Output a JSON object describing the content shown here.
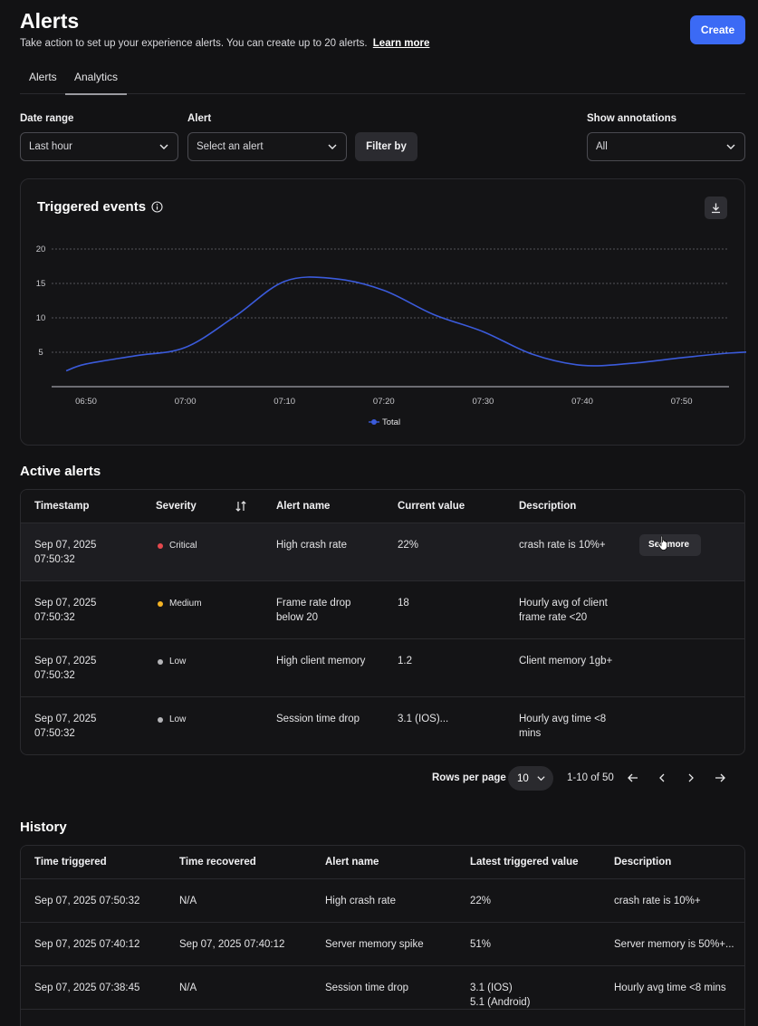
{
  "header": {
    "title": "Alerts",
    "subtitle": "Take action to set up your experience alerts. You can create up to 20 alerts.",
    "learn_more": "Learn more",
    "create_label": "Create"
  },
  "tabs": [
    {
      "label": "Alerts",
      "active": false
    },
    {
      "label": "Analytics",
      "active": true
    }
  ],
  "filters": {
    "date_range_label": "Date range",
    "date_range_value": "Last hour",
    "alert_label": "Alert",
    "alert_placeholder": "Select an alert",
    "filter_button": "Filter by",
    "annotations_label": "Show annotations",
    "annotations_value": "All"
  },
  "chart_data": {
    "type": "line",
    "title": "Triggered events",
    "x": [
      "06:50",
      "07:00",
      "07:10",
      "07:20",
      "07:30",
      "07:40",
      "07:50"
    ],
    "series": [
      {
        "name": "Total",
        "color": "#3b5bdb",
        "points": [
          [
            -2,
            2.3
          ],
          [
            0,
            3.3
          ],
          [
            5,
            4.5
          ],
          [
            10,
            5.7
          ],
          [
            15,
            10.2
          ],
          [
            20,
            15.3
          ],
          [
            25,
            15.7
          ],
          [
            30,
            14.0
          ],
          [
            35,
            10.5
          ],
          [
            40,
            8.0
          ],
          [
            45,
            4.7
          ],
          [
            50,
            3.1
          ],
          [
            55,
            3.4
          ],
          [
            60,
            4.2
          ],
          [
            65,
            4.9
          ],
          [
            70,
            5.2
          ],
          [
            75,
            5.3
          ],
          [
            78,
            5.3
          ]
        ]
      }
    ],
    "ylim": [
      0,
      20
    ],
    "yticks": [
      5,
      10,
      15,
      20
    ],
    "grid": true,
    "legend": "bottom-center"
  },
  "active_alerts": {
    "title": "Active alerts",
    "columns": [
      "Timestamp",
      "Severity",
      "Alert name",
      "Current value",
      "Description"
    ],
    "rows": [
      {
        "ts1": "Sep 07, 2025",
        "ts2": "07:50:32",
        "severity": "Critical",
        "color": "#e5484d",
        "name1": "High crash rate",
        "name2": "",
        "value": "22%",
        "desc1": "crash rate is 10%+",
        "desc2": ""
      },
      {
        "ts1": "Sep 07, 2025",
        "ts2": "07:50:32",
        "severity": "Medium",
        "color": "#f5b324",
        "name1": "Frame rate drop",
        "name2": "below 20",
        "value": "18",
        "desc1": "Hourly avg of client",
        "desc2": "frame rate <20"
      },
      {
        "ts1": "Sep 07, 2025",
        "ts2": "07:50:32",
        "severity": "Low",
        "color": "#b5b5b8",
        "name1": "High client memory",
        "name2": "",
        "value": "1.2",
        "desc1": "Client memory 1gb+",
        "desc2": ""
      },
      {
        "ts1": "Sep 07, 2025",
        "ts2": "07:50:32",
        "severity": "Low",
        "color": "#b5b5b8",
        "name1": "Session time drop",
        "name2": "",
        "value": "3.1 (IOS)...",
        "desc1": "Hourly avg time <8",
        "desc2": "mins"
      }
    ],
    "see_more": "See more"
  },
  "pagination": {
    "rows_label": "Rows per page",
    "rows_value": "10",
    "range": "1-10 of 50"
  },
  "history": {
    "title": "History",
    "columns": [
      "Time triggered",
      "Time recovered",
      "Alert name",
      "Latest triggered value",
      "Description"
    ],
    "rows": [
      {
        "triggered": "Sep 07, 2025 07:50:32",
        "recovered": "N/A",
        "name": "High crash rate",
        "value1": "22%",
        "value2": "",
        "desc": "crash rate is 10%+"
      },
      {
        "triggered": "Sep 07, 2025 07:40:12",
        "recovered": "Sep 07, 2025 07:40:12",
        "name": "Server memory spike",
        "value1": "51%",
        "value2": "",
        "desc": "Server memory is 50%+..."
      },
      {
        "triggered": "Sep 07, 2025 07:38:45",
        "recovered": "N/A",
        "name": "Session time drop",
        "value1": "3.1 (IOS)",
        "value2": "5.1 (Android)",
        "desc": "Hourly avg time <8 mins"
      }
    ]
  }
}
